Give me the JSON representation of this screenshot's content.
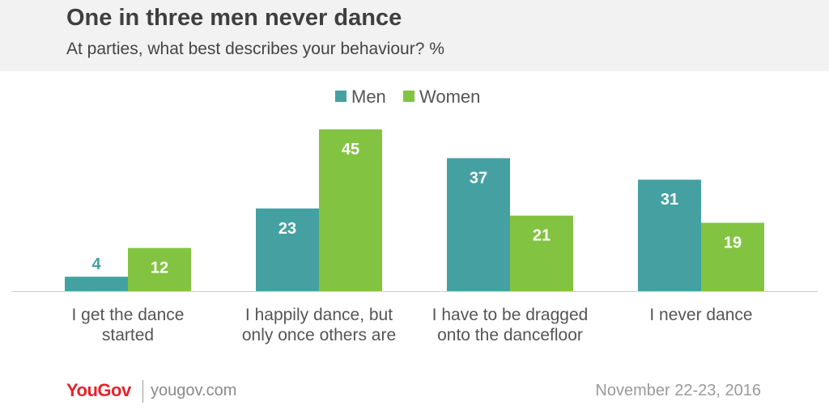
{
  "header": {
    "title": "One in three men never dance",
    "subtitle": "At parties, what best describes your behaviour? %"
  },
  "footer": {
    "brand": "YouGov",
    "url": "yougov.com",
    "date": "November 22-23, 2016"
  },
  "colors": {
    "men": "#45a1a1",
    "women": "#82c341"
  },
  "chart_data": {
    "type": "bar",
    "title": "One in three men never dance",
    "subtitle": "At parties, what best describes your behaviour? %",
    "categories": [
      [
        "I get the dance",
        "started"
      ],
      [
        "I happily dance, but",
        "only once others are"
      ],
      [
        "I have to be dragged",
        "onto the dancefloor"
      ],
      [
        "I never dance"
      ]
    ],
    "series": [
      {
        "name": "Men",
        "values": [
          4,
          23,
          37,
          31
        ]
      },
      {
        "name": "Women",
        "values": [
          12,
          45,
          21,
          19
        ]
      }
    ],
    "ylim": [
      0,
      45
    ],
    "grid": false,
    "legend": "top-center"
  }
}
